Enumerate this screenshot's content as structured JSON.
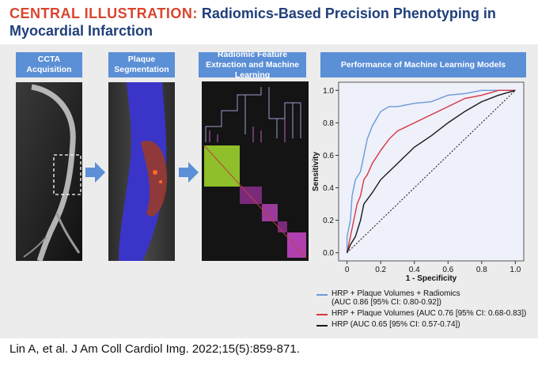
{
  "header": {
    "label": "CENTRAL ILLUSTRATION:",
    "title": "Radiomics-Based Precision Phenotyping in Myocardial Infarction"
  },
  "panels": [
    "CCTA Acquisition",
    "Plaque Segmentation",
    "Radiomic Feature Extraction and Machine Learning",
    "Performance of Machine Learning Models"
  ],
  "citation": "Lin A, et al. J Am Coll Cardiol Img. 2022;15(5):859-871.",
  "chart_data": {
    "type": "line",
    "xlabel": "1 - Specificity",
    "ylabel": "Sensitivity",
    "xlim": [
      -0.05,
      1.05
    ],
    "ylim": [
      -0.05,
      1.05
    ],
    "xticks": [
      0,
      0.2,
      0.4,
      0.6,
      0.8,
      {
        "value": 1,
        "label": "1.0"
      }
    ],
    "yticks": [
      {
        "value": 0,
        "label": "0.0"
      },
      0.2,
      0.4,
      0.6,
      0.8,
      {
        "value": 1,
        "label": "1.0"
      }
    ],
    "series": [
      {
        "name": "HRP + Plaque Volumes + Radiomics (AUC 0.86 [95% CI: 0.80-0.92])",
        "color": "#6b9bd8",
        "x": [
          0,
          0,
          0.02,
          0.03,
          0.05,
          0.08,
          0.1,
          0.12,
          0.15,
          0.2,
          0.25,
          0.3,
          0.4,
          0.5,
          0.6,
          0.7,
          0.8,
          1
        ],
        "values": [
          0,
          0.1,
          0.2,
          0.35,
          0.45,
          0.5,
          0.6,
          0.7,
          0.78,
          0.87,
          0.9,
          0.9,
          0.92,
          0.93,
          0.97,
          0.98,
          1,
          1
        ]
      },
      {
        "name": "HRP + Plaque Volumes (AUC 0.76 [95% CI: 0.68-0.83])",
        "color": "#d9363e",
        "x": [
          0,
          0.02,
          0.04,
          0.06,
          0.08,
          0.1,
          0.12,
          0.15,
          0.2,
          0.25,
          0.3,
          0.4,
          0.5,
          0.6,
          0.7,
          0.8,
          0.9,
          1
        ],
        "values": [
          0,
          0.1,
          0.2,
          0.3,
          0.35,
          0.45,
          0.48,
          0.55,
          0.63,
          0.7,
          0.75,
          0.8,
          0.85,
          0.9,
          0.95,
          0.97,
          1,
          1
        ]
      },
      {
        "name": "HRP (AUC 0.65 [95% CI: 0.57-0.74])",
        "color": "#1a1a1a",
        "x": [
          0,
          0.02,
          0.05,
          0.08,
          0.1,
          0.15,
          0.2,
          0.25,
          0.3,
          0.35,
          0.4,
          0.5,
          0.6,
          0.7,
          0.8,
          0.9,
          1
        ],
        "values": [
          0,
          0.05,
          0.1,
          0.2,
          0.3,
          0.37,
          0.45,
          0.5,
          0.55,
          0.6,
          0.65,
          0.72,
          0.8,
          0.87,
          0.93,
          0.97,
          1
        ]
      }
    ]
  }
}
